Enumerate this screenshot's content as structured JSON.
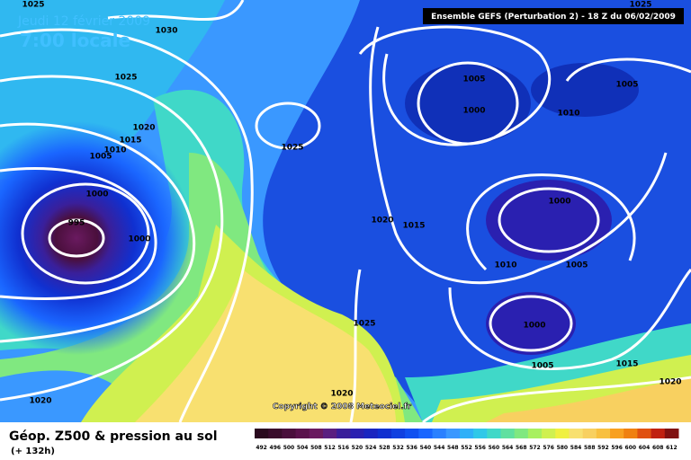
{
  "date": "Jeudi 12 février 2009",
  "time": "7:00 locale",
  "model": "Ensemble GEFS (Perturbation 2)  - 18 Z du 06/02/2009",
  "copyright": "Copyright © 2008 Meteociel.fr",
  "legend": {
    "title": "Géop. Z500 & pression au sol",
    "subtitle": "(+ 132h)",
    "ticks": [
      492,
      496,
      500,
      504,
      508,
      512,
      516,
      520,
      524,
      528,
      532,
      536,
      540,
      544,
      548,
      552,
      556,
      560,
      564,
      568,
      572,
      576,
      580,
      584,
      588,
      592,
      596,
      600,
      604,
      608,
      612
    ],
    "colors": [
      "#2a0a1e",
      "#3a0c2c",
      "#4a0f3c",
      "#5a124c",
      "#6a1a60",
      "#5a1f80",
      "#3a1f9a",
      "#2a20b0",
      "#1a25c0",
      "#1030d0",
      "#1040e0",
      "#1050f0",
      "#1a66ff",
      "#2a80ff",
      "#3a98ff",
      "#30b0f8",
      "#30c8e8",
      "#40d8c8",
      "#60e0a0",
      "#80e880",
      "#a8f060",
      "#d0f050",
      "#f0f040",
      "#f8e070",
      "#f8d060",
      "#f8c040",
      "#f8a020",
      "#f08010",
      "#e05010",
      "#c02010",
      "#801010"
    ]
  },
  "isobars": [
    "1025",
    "1030",
    "1025",
    "1020",
    "1015",
    "1010",
    "1005",
    "1000",
    "995",
    "1000",
    "1025",
    "1020",
    "1015",
    "1005",
    "1000",
    "1025",
    "1005",
    "1010",
    "1000",
    "1010",
    "1005",
    "1000",
    "1005",
    "1015",
    "1025",
    "1020",
    "1020",
    "1020"
  ]
}
